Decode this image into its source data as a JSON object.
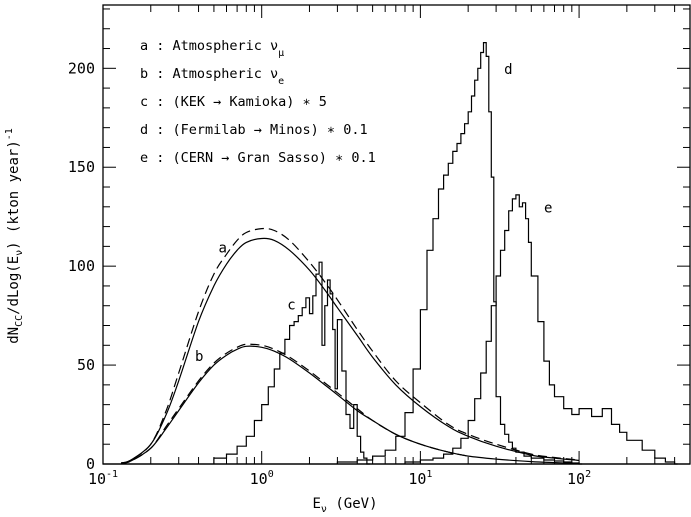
{
  "chart_data": {
    "type": "line",
    "xlabel": "E_ν (GeV)",
    "ylabel": "dN_CC/dLog(E_ν)   (kton year)^-1",
    "xscale": "log",
    "xlim": [
      0.1,
      500
    ],
    "ylim": [
      0,
      232
    ],
    "x_ticks": [
      {
        "value": 0.1,
        "base": "10",
        "exp": "-1"
      },
      {
        "value": 1,
        "base": "10",
        "exp": "0"
      },
      {
        "value": 10,
        "base": "10",
        "exp": "1"
      },
      {
        "value": 100,
        "base": "10",
        "exp": "2"
      }
    ],
    "y_ticks": [
      0,
      50,
      100,
      150,
      200
    ],
    "legend": [
      {
        "key": "a",
        "text": "a : Atmospheric ν",
        "sub": "μ"
      },
      {
        "key": "b",
        "text": "b : Atmospheric ν",
        "sub": "e"
      },
      {
        "key": "c",
        "text": "c : (KEK → Kamioka) ∗ 5",
        "sub": ""
      },
      {
        "key": "d",
        "text": "d : (Fermilab → Minos) ∗ 0.1",
        "sub": ""
      },
      {
        "key": "e",
        "text": "e : (CERN → Gran Sasso) ∗ 0.1",
        "sub": ""
      }
    ],
    "legend_position": "top-left",
    "series": [
      {
        "key": "a",
        "label": "a",
        "style": "solid",
        "kind": "smooth",
        "x": [
          0.13,
          0.15,
          0.2,
          0.25,
          0.3,
          0.4,
          0.5,
          0.6,
          0.7,
          0.8,
          1.0,
          1.2,
          1.5,
          2,
          2.5,
          3,
          4,
          5,
          7,
          10,
          15,
          20,
          30,
          50,
          70,
          100
        ],
        "y": [
          0.5,
          2,
          10,
          25,
          42,
          72,
          90,
          101,
          108,
          112,
          114,
          113,
          108,
          98,
          88,
          79,
          65,
          54,
          40,
          29,
          19,
          14,
          9,
          4.5,
          3,
          1.8
        ]
      },
      {
        "key": "a-dashed",
        "style": "dashed",
        "kind": "smooth",
        "x": [
          0.13,
          0.15,
          0.2,
          0.25,
          0.3,
          0.4,
          0.5,
          0.6,
          0.7,
          0.8,
          1.0,
          1.2,
          1.5,
          2,
          2.5,
          3,
          4,
          5,
          7,
          10,
          15,
          20,
          30,
          50,
          70,
          100
        ],
        "y": [
          0.5,
          2,
          10,
          27,
          46,
          77,
          96,
          106,
          113,
          117,
          119,
          118,
          113,
          102,
          92,
          83,
          68,
          57,
          42,
          31,
          20,
          15,
          10,
          5,
          3.3,
          2
        ]
      },
      {
        "key": "b",
        "label": "b",
        "style": "solid",
        "kind": "smooth",
        "x": [
          0.13,
          0.15,
          0.2,
          0.25,
          0.3,
          0.4,
          0.5,
          0.6,
          0.7,
          0.8,
          1.0,
          1.2,
          1.5,
          2,
          2.5,
          3,
          4,
          5,
          7,
          10,
          15,
          20,
          30,
          50,
          70,
          100
        ],
        "y": [
          0.3,
          1.5,
          8,
          18,
          27,
          41,
          50,
          55,
          58,
          59.5,
          59,
          57,
          53,
          46,
          40,
          35,
          27,
          22,
          15,
          10,
          6,
          4,
          2.5,
          1.2,
          0.7,
          0.3
        ]
      },
      {
        "key": "b-dashed",
        "style": "dashed",
        "kind": "smooth",
        "x": [
          0.13,
          0.15,
          0.2,
          0.25,
          0.3,
          0.4,
          0.5,
          0.6,
          0.7,
          0.8,
          1.0,
          1.2,
          1.5,
          2,
          2.5,
          3,
          4,
          5,
          7,
          10,
          15,
          20
        ],
        "y": [
          0.3,
          1.5,
          8,
          19,
          28,
          42,
          51,
          56,
          59,
          60.5,
          60,
          58,
          54,
          47,
          41,
          36,
          28,
          22,
          15,
          10,
          6,
          4
        ]
      },
      {
        "key": "c",
        "label": "c",
        "style": "solid",
        "kind": "step",
        "x": [
          0.5,
          0.6,
          0.7,
          0.8,
          0.9,
          1.0,
          1.1,
          1.2,
          1.3,
          1.4,
          1.5,
          1.6,
          1.7,
          1.8,
          1.9,
          2.0,
          2.1,
          2.2,
          2.3,
          2.4,
          2.5,
          2.6,
          2.7,
          2.8,
          2.9,
          3.0,
          3.2,
          3.4,
          3.6,
          3.8,
          4.0,
          4.2,
          4.4,
          4.6
        ],
        "y": [
          3,
          5,
          9,
          14,
          22,
          30,
          39,
          48,
          56,
          63,
          70,
          72,
          75,
          79,
          84,
          76,
          85,
          96,
          102,
          60,
          80,
          93,
          86,
          68,
          38,
          73,
          47,
          25,
          18,
          30,
          14,
          6,
          3,
          0
        ]
      },
      {
        "key": "d",
        "label": "d",
        "style": "solid",
        "kind": "step",
        "x": [
          3,
          4,
          5,
          6,
          7,
          8,
          9,
          10,
          11,
          12,
          13,
          14,
          15,
          16,
          17,
          18,
          19,
          20,
          21,
          22,
          23,
          24,
          25,
          26,
          27,
          28,
          29,
          30,
          32,
          34,
          36,
          38,
          40,
          45,
          50,
          60,
          70,
          80,
          90,
          100
        ],
        "y": [
          1,
          2,
          4,
          7,
          14,
          26,
          48,
          78,
          108,
          124,
          139,
          146,
          152,
          158,
          162,
          167,
          172,
          178,
          186,
          194,
          200,
          208,
          213,
          206,
          178,
          145,
          82,
          34,
          20,
          15,
          11,
          8,
          6,
          4,
          3,
          2,
          1.5,
          1,
          0.5,
          0
        ]
      },
      {
        "key": "e",
        "label": "e",
        "style": "solid",
        "kind": "step",
        "x": [
          8,
          10,
          12,
          14,
          16,
          18,
          20,
          22,
          24,
          26,
          28,
          30,
          32,
          34,
          36,
          38,
          40,
          42,
          44,
          46,
          48,
          50,
          55,
          60,
          65,
          70,
          80,
          90,
          100,
          120,
          140,
          160,
          180,
          200,
          250,
          300,
          350,
          400
        ],
        "y": [
          1,
          2,
          3,
          5,
          8,
          13,
          22,
          33,
          46,
          62,
          80,
          95,
          108,
          118,
          128,
          134,
          136,
          130,
          132,
          124,
          112,
          95,
          72,
          52,
          40,
          34,
          28,
          25,
          28,
          24,
          28,
          20,
          16,
          12,
          7,
          3,
          1,
          0
        ]
      }
    ]
  }
}
